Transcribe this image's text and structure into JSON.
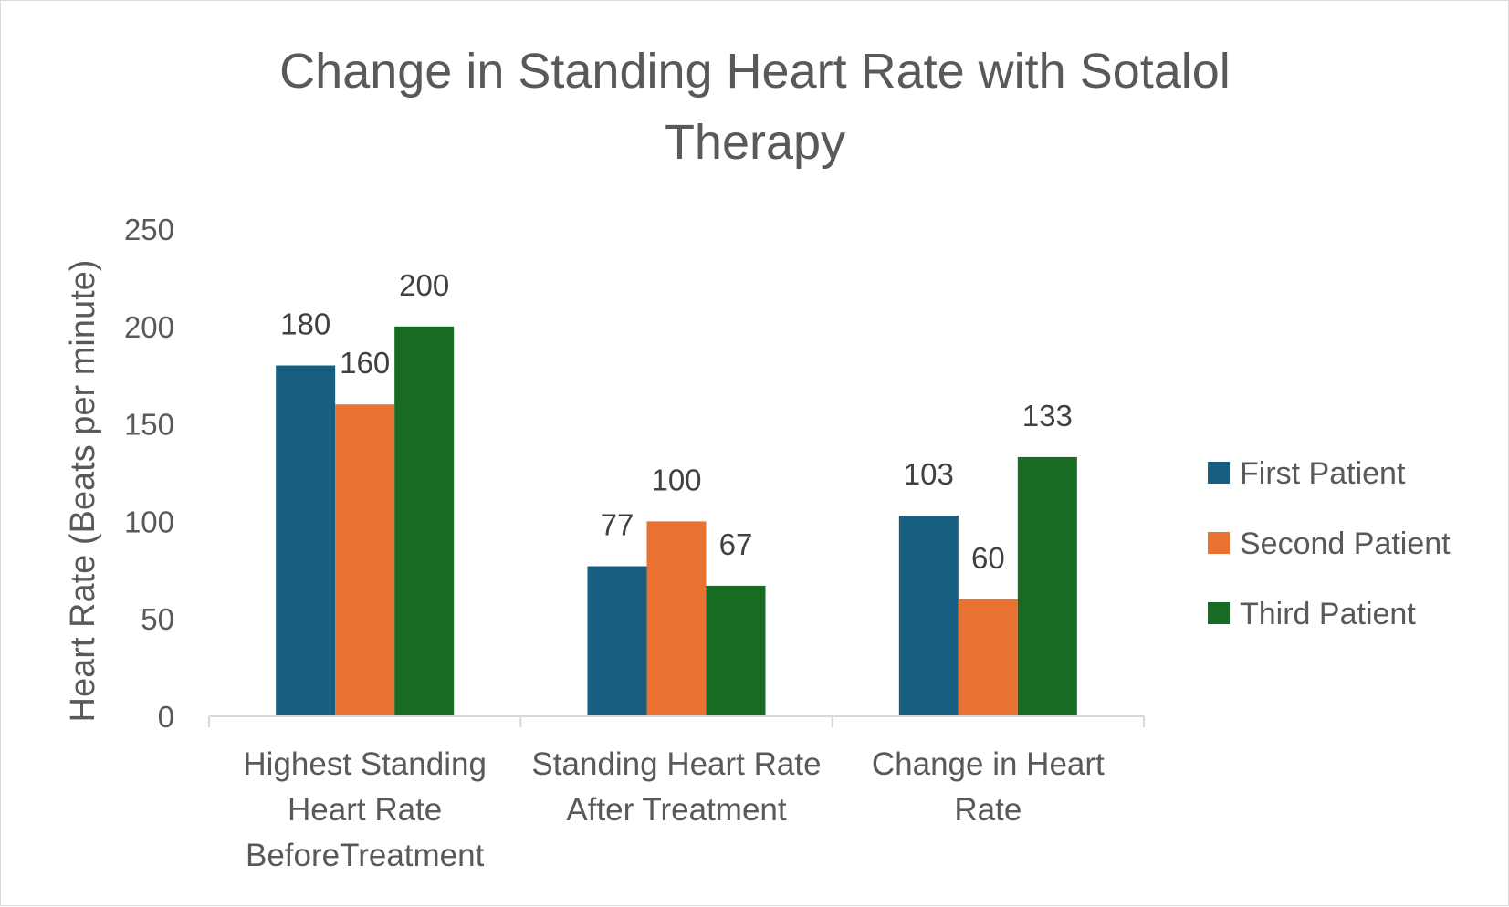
{
  "chart_data": {
    "type": "bar",
    "title_lines": [
      "Change in Standing Heart Rate with Sotalol",
      "Therapy"
    ],
    "xlabel": "",
    "ylabel": "Heart Rate (Beats per minute)",
    "ylim": [
      0,
      250
    ],
    "yticks": [
      0,
      50,
      100,
      150,
      200,
      250
    ],
    "grid": false,
    "legend_position": "right",
    "categories": [
      [
        "Highest Standing",
        "Heart Rate",
        "BeforeTreatment"
      ],
      [
        "Standing Heart Rate",
        "After Treatment"
      ],
      [
        "Change in Heart",
        "Rate"
      ]
    ],
    "series": [
      {
        "name": "First Patient",
        "color": "#175e82",
        "values": [
          180,
          77,
          103
        ]
      },
      {
        "name": "Second Patient",
        "color": "#e97132",
        "values": [
          160,
          100,
          60
        ]
      },
      {
        "name": "Third Patient",
        "color": "#196b24",
        "values": [
          200,
          67,
          133
        ]
      }
    ]
  }
}
